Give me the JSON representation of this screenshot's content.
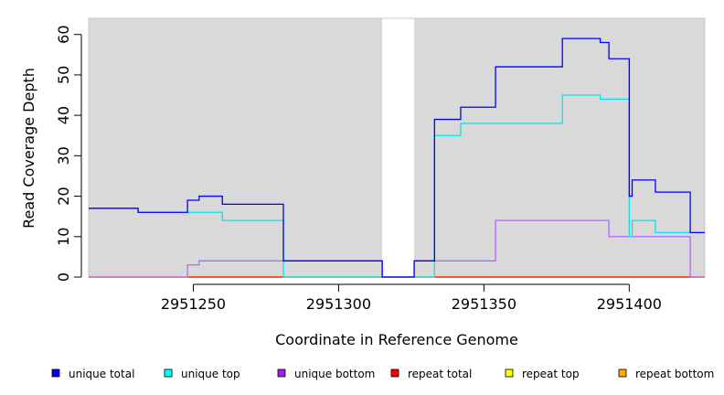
{
  "chart_data": {
    "type": "line",
    "step": true,
    "xlabel": "Coordinate in Reference Genome",
    "ylabel": "Read Coverage Depth",
    "xlim": [
      2951214,
      2951426
    ],
    "ylim": [
      0,
      64
    ],
    "x_ticks": [
      2951250,
      2951300,
      2951350,
      2951400
    ],
    "y_ticks": [
      0,
      10,
      20,
      30,
      40,
      50,
      60
    ],
    "background": "#d9d9d9",
    "gap_regions": [
      [
        2951315,
        2951326
      ]
    ],
    "series": [
      {
        "name": "unique total",
        "color": "#0000ff",
        "points": [
          [
            2951214,
            17
          ],
          [
            2951231,
            16
          ],
          [
            2951248,
            19
          ],
          [
            2951252,
            20
          ],
          [
            2951260,
            18
          ],
          [
            2951281,
            4
          ],
          [
            2951315,
            0
          ],
          [
            2951326,
            4
          ],
          [
            2951333,
            39
          ],
          [
            2951342,
            42
          ],
          [
            2951354,
            52
          ],
          [
            2951377,
            59
          ],
          [
            2951390,
            58
          ],
          [
            2951393,
            54
          ],
          [
            2951400,
            20
          ],
          [
            2951401,
            24
          ],
          [
            2951409,
            21
          ],
          [
            2951421,
            11
          ],
          [
            2951426,
            11
          ]
        ]
      },
      {
        "name": "unique top",
        "color": "#00e5ee",
        "points": [
          [
            2951214,
            17
          ],
          [
            2951231,
            16
          ],
          [
            2951248,
            16
          ],
          [
            2951260,
            14
          ],
          [
            2951281,
            0
          ],
          [
            2951326,
            0
          ],
          [
            2951333,
            35
          ],
          [
            2951342,
            38
          ],
          [
            2951377,
            45
          ],
          [
            2951390,
            44
          ],
          [
            2951400,
            10
          ],
          [
            2951401,
            14
          ],
          [
            2951409,
            11
          ],
          [
            2951421,
            11
          ],
          [
            2951426,
            11
          ]
        ]
      },
      {
        "name": "unique bottom",
        "color": "#b266ff",
        "points": [
          [
            2951214,
            0
          ],
          [
            2951248,
            3
          ],
          [
            2951252,
            4
          ],
          [
            2951281,
            4
          ],
          [
            2951315,
            0
          ],
          [
            2951326,
            4
          ],
          [
            2951354,
            14
          ],
          [
            2951393,
            10
          ],
          [
            2951421,
            0
          ],
          [
            2951426,
            0
          ]
        ]
      },
      {
        "name": "repeat total",
        "color": "#ff0000",
        "points": [
          [
            2951214,
            0
          ],
          [
            2951426,
            0
          ]
        ]
      },
      {
        "name": "repeat top",
        "color": "#ffff00",
        "points": [
          [
            2951214,
            0
          ],
          [
            2951426,
            0
          ]
        ]
      },
      {
        "name": "repeat bottom",
        "color": "#ffa500",
        "points": [
          [
            2951214,
            0
          ],
          [
            2951426,
            0
          ]
        ]
      }
    ],
    "legend": {
      "position": "bottom",
      "items": [
        {
          "label": "unique total",
          "color": "#0000ff"
        },
        {
          "label": "unique top",
          "color": "#00ffff"
        },
        {
          "label": "unique bottom",
          "color": "#a020f0"
        },
        {
          "label": "repeat total",
          "color": "#ff0000"
        },
        {
          "label": "repeat top",
          "color": "#ffff00"
        },
        {
          "label": "repeat bottom",
          "color": "#ffa500"
        }
      ]
    }
  }
}
